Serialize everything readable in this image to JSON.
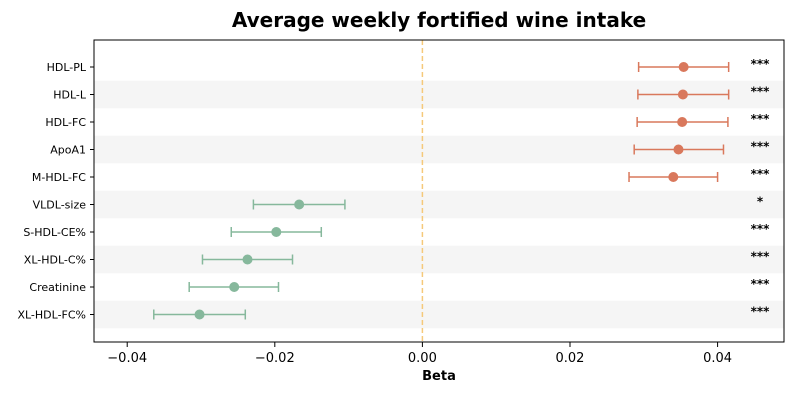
{
  "chart_data": {
    "type": "forest",
    "title": "Average weekly fortified wine intake",
    "xlabel": "Beta",
    "ylabel": "",
    "xlim": [
      -0.0445,
      0.049
    ],
    "xticks": [
      -0.04,
      -0.02,
      0.0,
      0.02,
      0.04
    ],
    "xtick_labels": [
      "−0.04",
      "−0.02",
      "0.00",
      "0.02",
      "0.04"
    ],
    "reference_line": 0.0,
    "grid": false,
    "colors": {
      "positive": "#d9785c",
      "negative": "#86b89c",
      "reference": "#f5c97a",
      "band": "#f5f5f5",
      "text": "#000000"
    },
    "rows": [
      {
        "label": "HDL-PL",
        "beta": 0.0354,
        "lo": 0.0293,
        "hi": 0.0415,
        "sig": "***"
      },
      {
        "label": "HDL-L",
        "beta": 0.0353,
        "lo": 0.0292,
        "hi": 0.0415,
        "sig": "***"
      },
      {
        "label": "HDL-FC",
        "beta": 0.0352,
        "lo": 0.0291,
        "hi": 0.0414,
        "sig": "***"
      },
      {
        "label": "ApoA1",
        "beta": 0.0347,
        "lo": 0.0287,
        "hi": 0.0408,
        "sig": "***"
      },
      {
        "label": "M-HDL-FC",
        "beta": 0.034,
        "lo": 0.028,
        "hi": 0.04,
        "sig": "***"
      },
      {
        "label": "VLDL-size",
        "beta": -0.0167,
        "lo": -0.0229,
        "hi": -0.0105,
        "sig": "*"
      },
      {
        "label": "S-HDL-CE%",
        "beta": -0.0198,
        "lo": -0.0259,
        "hi": -0.0137,
        "sig": "***"
      },
      {
        "label": "XL-HDL-C%",
        "beta": -0.0237,
        "lo": -0.0298,
        "hi": -0.0176,
        "sig": "***"
      },
      {
        "label": "Creatinine",
        "beta": -0.0255,
        "lo": -0.0316,
        "hi": -0.0195,
        "sig": "***"
      },
      {
        "label": "XL-HDL-FC%",
        "beta": -0.0302,
        "lo": -0.0364,
        "hi": -0.024,
        "sig": "***"
      }
    ]
  }
}
